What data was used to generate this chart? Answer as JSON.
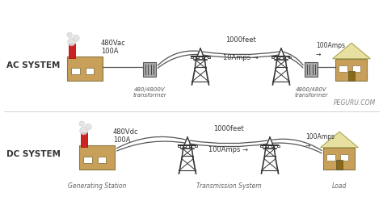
{
  "factory_color": "#c8a05a",
  "chimney_color": "#cc2222",
  "house_wall_color": "#c8a05a",
  "house_roof_color": "#e8e0a0",
  "transformer_color": "#aaaaaa",
  "wire_color": "#555555",
  "tower_color": "#333333",
  "text_color": "#333333",
  "dc_label": "DC SYSTEM",
  "ac_label": "AC SYSTEM",
  "gen_station_label": "Generating Station",
  "transmission_label": "Transmission System",
  "load_label": "Load",
  "dc_volts": "480Vdc\n100A",
  "ac_volts": "480Vac\n100A",
  "dc_amps_mid": "100Amps →",
  "dc_amps_end": "100Amps\n→",
  "ac_amps_mid": "10Amps →",
  "ac_amps_end": "100Amps\n→",
  "dc_feet": "1000feet",
  "ac_feet": "1000feet",
  "transformer1_label": "480/4800V\ntransformer",
  "transformer2_label": "4800/480V\ntransformer",
  "watermark": "PEGURU.COM"
}
